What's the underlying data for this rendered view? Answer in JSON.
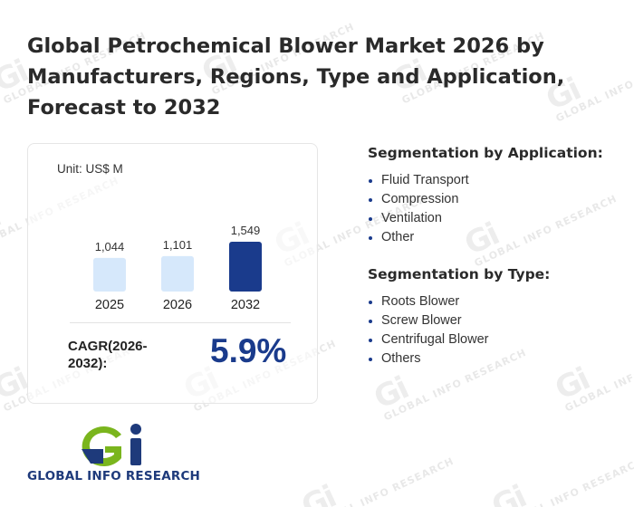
{
  "title": "Global Petrochemical Blower Market 2026 by Manufacturers, Regions, Type and Application, Forecast to 2032",
  "chart_data": {
    "type": "bar",
    "unit_label": "Unit: US$ M",
    "categories": [
      "2025",
      "2026",
      "2032"
    ],
    "values": [
      1044,
      1101,
      1549
    ],
    "value_labels": [
      "1,044",
      "1,101",
      "1,549"
    ],
    "colors": [
      "#d6e8fb",
      "#d6e8fb",
      "#1a3b8c"
    ],
    "title": "",
    "xlabel": "",
    "ylabel": "",
    "grid": false,
    "legend": "none"
  },
  "cagr": {
    "label_line1": "CAGR(2026-",
    "label_line2": "2032):",
    "value": "5.9%"
  },
  "segmentation_application": {
    "heading": "Segmentation by Application:",
    "items": [
      "Fluid Transport",
      "Compression",
      "Ventilation",
      "Other"
    ]
  },
  "segmentation_type": {
    "heading": "Segmentation by Type:",
    "items": [
      "Roots Blower",
      "Screw Blower",
      "Centrifugal Blower",
      "Others"
    ]
  },
  "logo": {
    "text": "GLOBAL INFO RESEARCH",
    "watermark": "GLOBAL INFO RESEARCH",
    "colors": {
      "green": "#7ab51d",
      "blue": "#1e3a7b"
    }
  }
}
